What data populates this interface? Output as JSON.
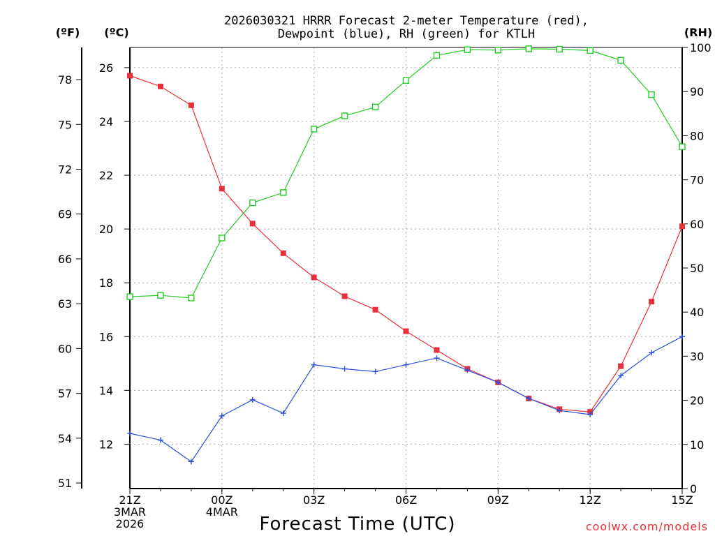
{
  "chart_data": {
    "type": "line",
    "title_lines": [
      "2026030321 HRRR Forecast 2-meter Temperature (red),",
      "Dewpoint (blue), RH (green) for KTLH"
    ],
    "xlabel": "Forecast Time (UTC)",
    "credit": "coolwx.com/models",
    "units": {
      "fahrenheit": "(ºF)",
      "celsius": "(ºC)",
      "rh": "(RH)"
    },
    "x_hours": [
      0,
      1,
      2,
      3,
      4,
      5,
      6,
      7,
      8,
      9,
      10,
      11,
      12,
      13,
      14,
      15,
      16,
      17,
      18
    ],
    "x_range": [
      0,
      18
    ],
    "x_ticks": [
      {
        "hour": 0,
        "lines": [
          "21Z",
          "3MAR",
          "2026"
        ]
      },
      {
        "hour": 3,
        "lines": [
          "00Z",
          "4MAR"
        ]
      },
      {
        "hour": 6,
        "lines": [
          "03Z"
        ]
      },
      {
        "hour": 9,
        "lines": [
          "06Z"
        ]
      },
      {
        "hour": 12,
        "lines": [
          "09Z"
        ]
      },
      {
        "hour": 15,
        "lines": [
          "12Z"
        ]
      },
      {
        "hour": 18,
        "lines": [
          "15Z"
        ]
      }
    ],
    "celsius_range": [
      10.35,
      26.75
    ],
    "celsius_ticks": [
      "12",
      "14",
      "16",
      "18",
      "20",
      "22",
      "24",
      "26"
    ],
    "fahrenheit_ticks": [
      "51",
      "54",
      "57",
      "60",
      "63",
      "66",
      "69",
      "72",
      "75",
      "78"
    ],
    "rh_range": [
      0,
      100
    ],
    "rh_ticks": [
      "0",
      "10",
      "20",
      "30",
      "40",
      "50",
      "60",
      "70",
      "80",
      "90",
      "100"
    ],
    "series": [
      {
        "name": "Temperature",
        "unit": "C",
        "color": "#e8303a",
        "marker": "filled-square",
        "values": [
          25.7,
          25.3,
          24.6,
          21.5,
          20.2,
          19.1,
          18.2,
          17.5,
          17.0,
          16.2,
          15.5,
          14.8,
          14.3,
          13.7,
          13.3,
          13.2,
          14.9,
          17.3,
          20.1
        ]
      },
      {
        "name": "Dewpoint",
        "unit": "C",
        "color": "#2e4fe0",
        "marker": "plus",
        "values": [
          12.4,
          12.15,
          11.35,
          13.05,
          13.65,
          13.15,
          14.95,
          14.8,
          14.7,
          14.95,
          15.2,
          14.75,
          14.3,
          13.7,
          13.25,
          13.1,
          14.55,
          15.4,
          16.0
        ]
      },
      {
        "name": "RH",
        "unit": "%",
        "color": "#22cc22",
        "marker": "open-square",
        "values": [
          43.5,
          43.8,
          43.2,
          56.8,
          64.8,
          67.1,
          81.5,
          84.5,
          86.5,
          92.5,
          98.2,
          99.5,
          99.4,
          99.7,
          99.6,
          99.3,
          97.1,
          89.3,
          77.5
        ]
      }
    ]
  }
}
